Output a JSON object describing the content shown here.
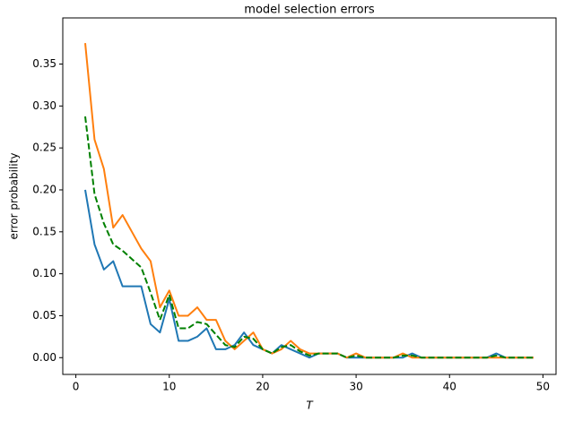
{
  "chart_data": {
    "type": "line",
    "title": "model selection errors",
    "xlabel": "T",
    "ylabel": "error probability",
    "x": [
      1,
      2,
      3,
      4,
      5,
      6,
      7,
      8,
      9,
      10,
      11,
      12,
      13,
      14,
      15,
      16,
      17,
      18,
      19,
      20,
      21,
      22,
      23,
      24,
      25,
      26,
      27,
      28,
      29,
      30,
      31,
      32,
      33,
      34,
      35,
      36,
      37,
      38,
      39,
      40,
      41,
      42,
      43,
      44,
      45,
      46,
      47,
      48,
      49
    ],
    "series": [
      {
        "color": "#1f77b4",
        "linestyle": "solid",
        "values": [
          0.2,
          0.135,
          0.105,
          0.115,
          0.085,
          0.085,
          0.085,
          0.04,
          0.03,
          0.07,
          0.02,
          0.02,
          0.025,
          0.035,
          0.01,
          0.01,
          0.015,
          0.03,
          0.015,
          0.01,
          0.005,
          0.015,
          0.01,
          0.005,
          0,
          0.005,
          0.005,
          0.005,
          0,
          0,
          0,
          0,
          0,
          0,
          0,
          0.005,
          0,
          0,
          0,
          0,
          0,
          0,
          0,
          0,
          0.005,
          0,
          0,
          0,
          0
        ]
      },
      {
        "color": "#ff7f0e",
        "linestyle": "solid",
        "values": [
          0.375,
          0.26,
          0.225,
          0.155,
          0.17,
          0.15,
          0.13,
          0.115,
          0.06,
          0.08,
          0.05,
          0.05,
          0.06,
          0.045,
          0.045,
          0.02,
          0.01,
          0.02,
          0.03,
          0.01,
          0.005,
          0.01,
          0.02,
          0.01,
          0.005,
          0.005,
          0.005,
          0.005,
          0,
          0.005,
          0,
          0,
          0,
          0,
          0.005,
          0,
          0,
          0,
          0,
          0,
          0,
          0,
          0,
          0,
          0,
          0,
          0,
          0,
          0
        ]
      },
      {
        "color": "#008000",
        "linestyle": "dashed",
        "values": [
          0.2875,
          0.195,
          0.16,
          0.135,
          0.1275,
          0.1175,
          0.1075,
          0.0775,
          0.045,
          0.075,
          0.035,
          0.035,
          0.0425,
          0.04,
          0.0275,
          0.015,
          0.0125,
          0.025,
          0.0225,
          0.01,
          0.005,
          0.0125,
          0.015,
          0.0075,
          0.0025,
          0.005,
          0.005,
          0.005,
          0,
          0.0025,
          0,
          0,
          0,
          0,
          0.0025,
          0.0025,
          0,
          0,
          0,
          0,
          0,
          0,
          0,
          0,
          0.0025,
          0,
          0,
          0,
          0
        ]
      }
    ],
    "xlim": [
      -1.4,
      51.4
    ],
    "xticks": [
      0,
      10,
      20,
      30,
      40,
      50
    ],
    "ylim": [
      -0.02,
      0.405
    ],
    "yticks": [
      {
        "value": 0,
        "label": "0.00"
      },
      0.05,
      {
        "value": 0.1,
        "label": "0.10"
      },
      0.15,
      {
        "value": 0.2,
        "label": "0.20"
      },
      0.25,
      {
        "value": 0.3,
        "label": "0.30"
      },
      0.35
    ],
    "grid": false
  }
}
